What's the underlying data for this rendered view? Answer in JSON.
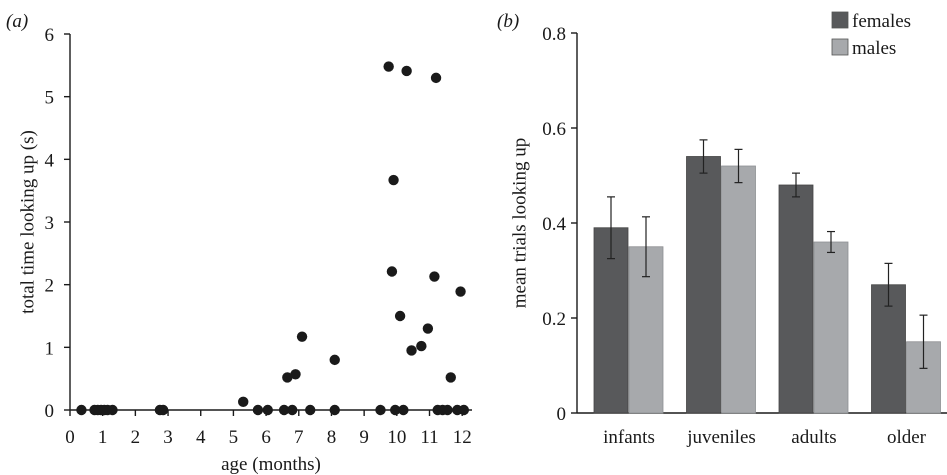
{
  "chart_data": [
    {
      "panel_label": "(a)",
      "type": "scatter",
      "xlabel": "age (months)",
      "ylabel": "total time looking up (s)",
      "xlim": [
        0,
        12.3
      ],
      "ylim": [
        0,
        6
      ],
      "x_ticks": [
        0,
        1,
        2,
        3,
        4,
        5,
        6,
        7,
        8,
        9,
        10,
        11,
        12
      ],
      "y_ticks": [
        0,
        1,
        2,
        3,
        4,
        5,
        6
      ],
      "marker_color": "#1a1a1a",
      "points": [
        {
          "x": 0.35,
          "y": 0
        },
        {
          "x": 0.75,
          "y": 0
        },
        {
          "x": 0.85,
          "y": 0
        },
        {
          "x": 0.95,
          "y": 0
        },
        {
          "x": 1.05,
          "y": 0
        },
        {
          "x": 1.15,
          "y": 0
        },
        {
          "x": 1.3,
          "y": 0
        },
        {
          "x": 2.75,
          "y": 0
        },
        {
          "x": 2.85,
          "y": 0
        },
        {
          "x": 5.3,
          "y": 0.13
        },
        {
          "x": 5.75,
          "y": 0
        },
        {
          "x": 6.05,
          "y": 0
        },
        {
          "x": 6.55,
          "y": 0
        },
        {
          "x": 6.65,
          "y": 0.52
        },
        {
          "x": 6.8,
          "y": 0
        },
        {
          "x": 6.9,
          "y": 0.57
        },
        {
          "x": 7.1,
          "y": 1.17
        },
        {
          "x": 7.35,
          "y": 0
        },
        {
          "x": 8.1,
          "y": 0.8
        },
        {
          "x": 8.1,
          "y": 0
        },
        {
          "x": 9.5,
          "y": 0
        },
        {
          "x": 9.75,
          "y": 5.48
        },
        {
          "x": 9.85,
          "y": 2.21
        },
        {
          "x": 9.9,
          "y": 3.67
        },
        {
          "x": 9.95,
          "y": 0
        },
        {
          "x": 10.1,
          "y": 1.5
        },
        {
          "x": 10.2,
          "y": 0
        },
        {
          "x": 10.3,
          "y": 5.41
        },
        {
          "x": 10.45,
          "y": 0.95
        },
        {
          "x": 10.75,
          "y": 1.02
        },
        {
          "x": 10.95,
          "y": 1.3
        },
        {
          "x": 11.15,
          "y": 2.13
        },
        {
          "x": 11.2,
          "y": 5.3
        },
        {
          "x": 11.25,
          "y": 0
        },
        {
          "x": 11.4,
          "y": 0
        },
        {
          "x": 11.55,
          "y": 0
        },
        {
          "x": 11.65,
          "y": 0.52
        },
        {
          "x": 11.85,
          "y": 0
        },
        {
          "x": 11.95,
          "y": 1.89
        },
        {
          "x": 12.05,
          "y": 0
        }
      ]
    },
    {
      "panel_label": "(b)",
      "type": "bar",
      "ylabel": "mean trials looking up",
      "ylim": [
        0,
        0.8
      ],
      "y_ticks": [
        "0",
        "0.2",
        "0.4",
        "0.6",
        "0.8"
      ],
      "categories": [
        "infants",
        "juveniles",
        "adults",
        "older"
      ],
      "legend_position": "top-right",
      "series": [
        {
          "name": "females",
          "color": "#58595b",
          "values": [
            0.39,
            0.54,
            0.48,
            0.27
          ],
          "errors": [
            0.065,
            0.035,
            0.025,
            0.045
          ]
        },
        {
          "name": "males",
          "color": "#a7a9ac",
          "values": [
            0.35,
            0.52,
            0.36,
            0.15
          ],
          "errors": [
            0.063,
            0.035,
            0.022,
            0.056
          ]
        }
      ]
    }
  ]
}
